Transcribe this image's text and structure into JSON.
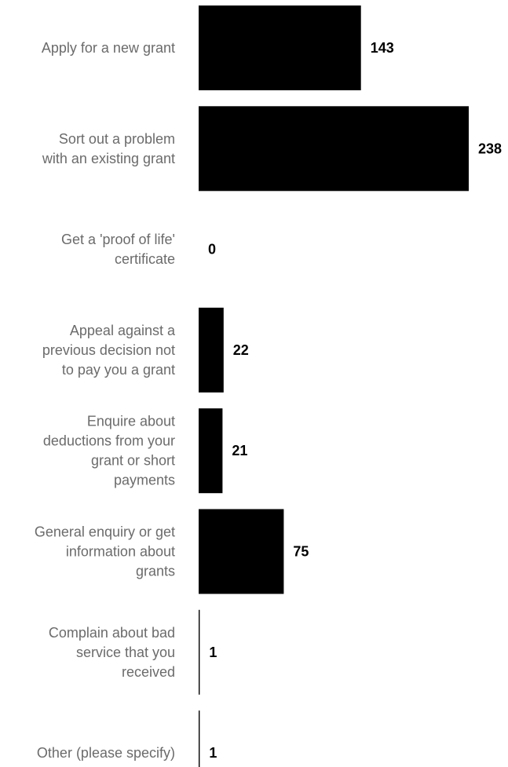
{
  "chart_data": {
    "type": "bar",
    "orientation": "horizontal",
    "categories": [
      "Apply for a new grant",
      "Sort out a problem with an existing grant",
      "Get a 'proof of life' certificate",
      "Appeal against a previous decision not to pay you a grant",
      "Enquire about deductions from your grant or short payments",
      "General enquiry or get information about grants",
      "Complain about bad service that you received",
      "Other (please specify)"
    ],
    "category_label_lines": [
      [
        "Apply for a new grant"
      ],
      [
        "Sort out a problem",
        "with an existing grant"
      ],
      [
        "Get a 'proof of life'",
        "certificate"
      ],
      [
        "Appeal against a",
        "previous decision not",
        "to pay you a grant"
      ],
      [
        "Enquire about",
        "deductions from your",
        "grant or short",
        "payments"
      ],
      [
        "General enquiry or get",
        "information about",
        "grants"
      ],
      [
        "Complain about bad",
        "service that you",
        "received"
      ],
      [
        "Other (please specify)"
      ]
    ],
    "values": [
      143,
      238,
      0,
      22,
      21,
      75,
      1,
      1
    ],
    "value_labels": [
      "143",
      "238",
      "0",
      "22",
      "21",
      "75",
      "1",
      "1"
    ],
    "xlim": [
      0,
      238
    ],
    "grid": false,
    "bar_color": "#000000",
    "label_color": "#6b6b6b",
    "value_color": "#000000"
  }
}
